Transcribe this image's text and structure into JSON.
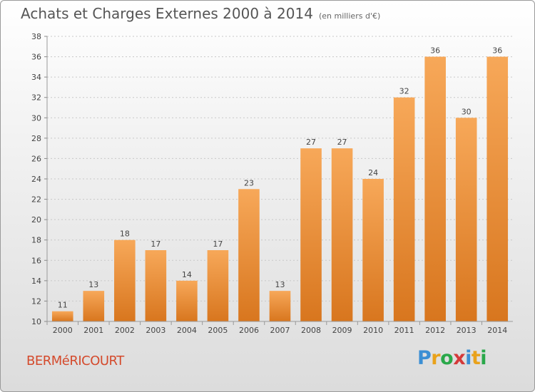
{
  "title": "Achats et Charges Externes 2000 à 2014",
  "unit": "(en milliers d'€)",
  "commune": "BERMéRICOURT",
  "brand": {
    "letters": [
      "P",
      "r",
      "o",
      "x",
      "i",
      "t",
      "i"
    ],
    "colors": [
      "#3b8fd4",
      "#e9a21b",
      "#2aa84a",
      "#d43a3a",
      "#3b8fd4",
      "#e9a21b",
      "#2aa84a"
    ]
  },
  "colors": {
    "bar_top": "#f7a859",
    "bar_bottom": "#d8761e",
    "grid": "#c8c8c8"
  },
  "chart_data": {
    "type": "bar",
    "title": "Achats et Charges Externes 2000 à 2014",
    "xlabel": "",
    "ylabel": "",
    "categories": [
      "2000",
      "2001",
      "2002",
      "2003",
      "2004",
      "2005",
      "2006",
      "2007",
      "2008",
      "2009",
      "2010",
      "2011",
      "2012",
      "2013",
      "2014"
    ],
    "values": [
      11,
      13,
      18,
      17,
      14,
      17,
      23,
      13,
      27,
      27,
      24,
      32,
      36,
      30,
      36
    ],
    "ylim": [
      10,
      38
    ],
    "yticks": [
      10,
      12,
      14,
      16,
      18,
      20,
      22,
      24,
      26,
      28,
      30,
      32,
      34,
      36,
      38
    ],
    "grid": true,
    "legend": "none"
  }
}
